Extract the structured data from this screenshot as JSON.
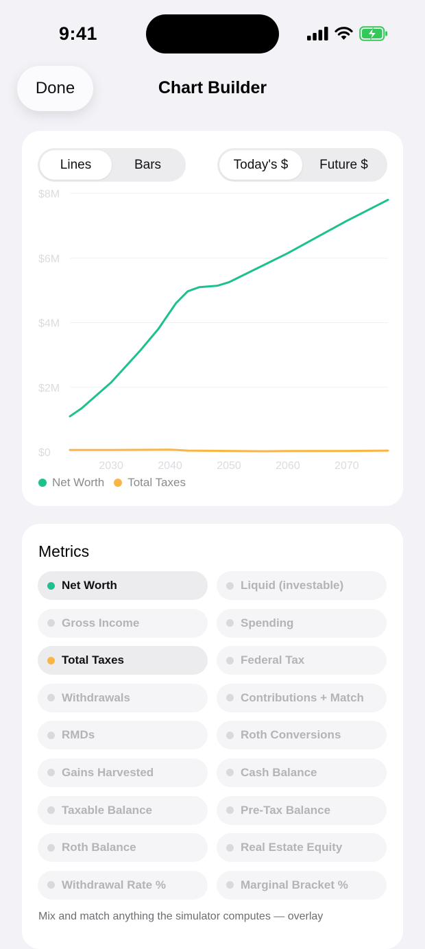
{
  "status": {
    "time": "9:41"
  },
  "nav": {
    "done_label": "Done",
    "title": "Chart Builder"
  },
  "toggles": {
    "type": {
      "options": [
        "Lines",
        "Bars"
      ],
      "selected": "Lines"
    },
    "dollars": {
      "options": [
        "Today's $",
        "Future $"
      ],
      "selected": "Today's $"
    }
  },
  "chart_data": {
    "type": "line",
    "ylim": [
      0,
      8000000
    ],
    "xlim": [
      2023,
      2077
    ],
    "y_ticks": [
      "$0",
      "$2M",
      "$4M",
      "$6M",
      "$8M"
    ],
    "x_ticks": [
      "2030",
      "2040",
      "2050",
      "2060",
      "2070"
    ],
    "grid": true,
    "legend_position": "bottom-left",
    "series": [
      {
        "name": "Net Worth",
        "color": "#1cc18f",
        "points": [
          [
            2023,
            1100000
          ],
          [
            2025,
            1350000
          ],
          [
            2030,
            2150000
          ],
          [
            2035,
            3150000
          ],
          [
            2038,
            3800000
          ],
          [
            2041,
            4600000
          ],
          [
            2043,
            4970000
          ],
          [
            2045,
            5100000
          ],
          [
            2048,
            5140000
          ],
          [
            2050,
            5250000
          ],
          [
            2055,
            5700000
          ],
          [
            2060,
            6150000
          ],
          [
            2065,
            6650000
          ],
          [
            2070,
            7150000
          ],
          [
            2077,
            7800000
          ]
        ]
      },
      {
        "name": "Total Taxes",
        "color": "#f9b645",
        "points": [
          [
            2023,
            60000
          ],
          [
            2030,
            60000
          ],
          [
            2040,
            70000
          ],
          [
            2043,
            40000
          ],
          [
            2050,
            30000
          ],
          [
            2056,
            20000
          ],
          [
            2060,
            25000
          ],
          [
            2070,
            30000
          ],
          [
            2077,
            40000
          ]
        ]
      }
    ]
  },
  "metrics": {
    "title": "Metrics",
    "items": [
      {
        "label": "Net Worth",
        "on": true,
        "color": "#1cc18f"
      },
      {
        "label": "Liquid (investable)",
        "on": false
      },
      {
        "label": "Gross Income",
        "on": false
      },
      {
        "label": "Spending",
        "on": false
      },
      {
        "label": "Total Taxes",
        "on": true,
        "color": "#f9b645"
      },
      {
        "label": "Federal Tax",
        "on": false
      },
      {
        "label": "Withdrawals",
        "on": false
      },
      {
        "label": "Contributions + Match",
        "on": false
      },
      {
        "label": "RMDs",
        "on": false
      },
      {
        "label": "Roth Conversions",
        "on": false
      },
      {
        "label": "Gains Harvested",
        "on": false
      },
      {
        "label": "Cash Balance",
        "on": false
      },
      {
        "label": "Taxable Balance",
        "on": false
      },
      {
        "label": "Pre-Tax Balance",
        "on": false
      },
      {
        "label": "Roth Balance",
        "on": false
      },
      {
        "label": "Real Estate Equity",
        "on": false
      },
      {
        "label": "Withdrawal Rate %",
        "on": false
      },
      {
        "label": "Marginal Bracket %",
        "on": false
      }
    ],
    "footnote": "Mix and match anything the simulator computes — overlay"
  }
}
